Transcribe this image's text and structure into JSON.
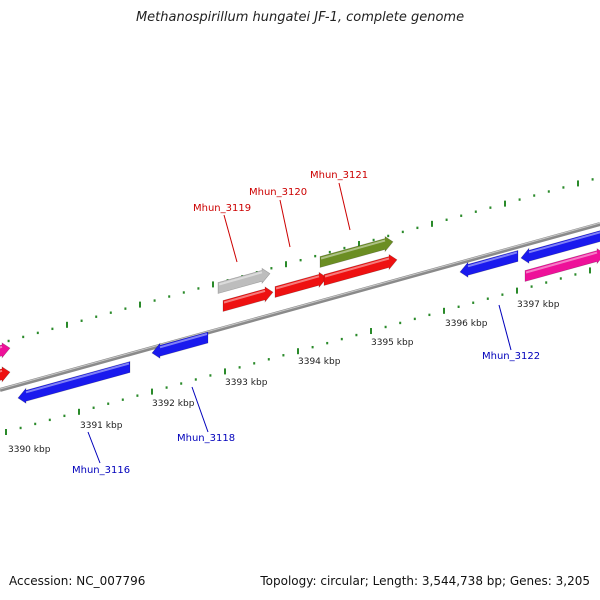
{
  "title": "Methanospirillum hungatei JF-1, complete genome",
  "footer": {
    "accession": "Accession: NC_007796",
    "summary": "Topology: circular; Length: 3,544,738 bp; Genes: 3,205"
  },
  "colors": {
    "forward_label": "#cc0000",
    "reverse_label": "#0000bb",
    "red": "#ee1111",
    "blue": "#1a1aee",
    "pink": "#ee1199",
    "olive": "#6b8e23",
    "grey": "#bdbdbd",
    "backbone": "#808080",
    "ticks": "#2a8a2a"
  },
  "kbp_labels": [
    "3390 kbp",
    "3391 kbp",
    "3392 kbp",
    "3393 kbp",
    "3394 kbp",
    "3395 kbp",
    "3396 kbp",
    "3397 kbp"
  ],
  "gene_labels": {
    "forward": [
      "Mhun_3119",
      "Mhun_3120",
      "Mhun_3121"
    ],
    "reverse": [
      "Mhun_3116",
      "Mhun_3118",
      "Mhun_3122"
    ]
  }
}
